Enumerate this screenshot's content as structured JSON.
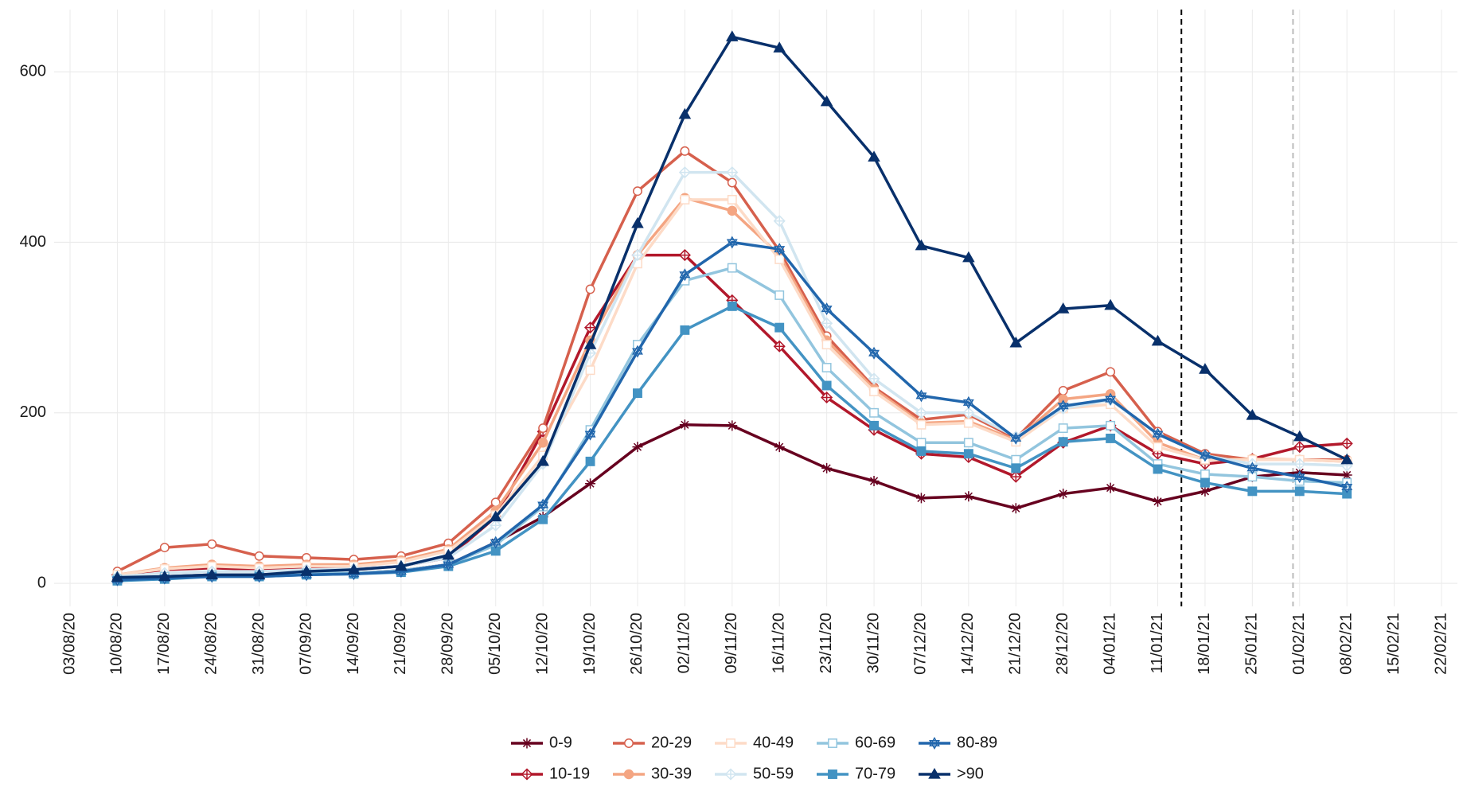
{
  "chart_data": {
    "type": "line",
    "categories": [
      "03/08/20",
      "10/08/20",
      "17/08/20",
      "24/08/20",
      "31/08/20",
      "07/09/20",
      "14/09/20",
      "21/09/20",
      "28/09/20",
      "05/10/20",
      "12/10/20",
      "19/10/20",
      "26/10/20",
      "02/11/20",
      "09/11/20",
      "16/11/20",
      "23/11/20",
      "30/11/20",
      "07/12/20",
      "14/12/20",
      "21/12/20",
      "28/12/20",
      "04/01/21",
      "11/01/21",
      "18/01/21",
      "25/01/21",
      "01/02/21",
      "08/02/21",
      "15/02/21",
      "22/02/21"
    ],
    "ylim": [
      -27,
      673
    ],
    "yticks": [
      0,
      200,
      400,
      600
    ],
    "grid": true,
    "legend": "bottom",
    "vlines": [
      {
        "x": 23.5,
        "color": "#000000"
      },
      {
        "x": 25.86,
        "color": "#bbbbbb"
      }
    ],
    "series": [
      {
        "name": "0-9",
        "color": "#67001f",
        "marker": "asterisk",
        "values": [
          null,
          5,
          8,
          10,
          10,
          12,
          12,
          15,
          22,
          48,
          78,
          117,
          160,
          186,
          185,
          160,
          135,
          120,
          100,
          102,
          88,
          105,
          112,
          96,
          108,
          125,
          130,
          127,
          null,
          null
        ]
      },
      {
        "name": "10-19",
        "color": "#b2182b",
        "marker": "diamond",
        "values": [
          null,
          10,
          16,
          18,
          16,
          17,
          17,
          20,
          30,
          78,
          178,
          300,
          385,
          385,
          332,
          278,
          218,
          180,
          152,
          148,
          125,
          165,
          185,
          152,
          140,
          146,
          160,
          164,
          null,
          null
        ]
      },
      {
        "name": "20-29",
        "color": "#d6604d",
        "marker": "circle-open",
        "values": [
          null,
          14,
          42,
          46,
          32,
          30,
          28,
          32,
          47,
          95,
          182,
          345,
          460,
          507,
          470,
          390,
          290,
          230,
          192,
          198,
          170,
          226,
          248,
          178,
          152,
          145,
          145,
          145,
          null,
          null
        ]
      },
      {
        "name": "30-39",
        "color": "#f4a582",
        "marker": "circle",
        "values": [
          null,
          10,
          18,
          22,
          20,
          22,
          22,
          27,
          40,
          85,
          165,
          285,
          385,
          452,
          437,
          385,
          285,
          228,
          188,
          190,
          168,
          216,
          222,
          165,
          145,
          146,
          145,
          143,
          null,
          null
        ]
      },
      {
        "name": "40-49",
        "color": "#fddbc7",
        "marker": "square-open",
        "values": [
          null,
          10,
          17,
          20,
          18,
          20,
          20,
          25,
          38,
          80,
          150,
          250,
          375,
          450,
          450,
          380,
          280,
          225,
          186,
          188,
          166,
          205,
          210,
          160,
          145,
          145,
          145,
          143,
          null,
          null
        ]
      },
      {
        "name": "50-59",
        "color": "#d1e5f0",
        "marker": "diamond",
        "values": [
          null,
          8,
          12,
          14,
          14,
          16,
          17,
          20,
          30,
          68,
          140,
          270,
          385,
          482,
          482,
          425,
          305,
          240,
          200,
          200,
          172,
          205,
          215,
          175,
          150,
          140,
          140,
          138,
          null,
          null
        ]
      },
      {
        "name": "60-69",
        "color": "#92c5de",
        "marker": "square-open",
        "values": [
          null,
          5,
          8,
          10,
          10,
          12,
          12,
          15,
          22,
          45,
          90,
          180,
          280,
          355,
          370,
          338,
          253,
          200,
          165,
          165,
          145,
          182,
          185,
          140,
          128,
          125,
          120,
          118,
          null,
          null
        ]
      },
      {
        "name": "70-79",
        "color": "#4393c3",
        "marker": "square",
        "values": [
          null,
          3,
          5,
          8,
          8,
          10,
          11,
          13,
          20,
          38,
          75,
          143,
          223,
          297,
          325,
          300,
          232,
          185,
          155,
          152,
          135,
          166,
          170,
          134,
          118,
          108,
          108,
          105,
          null,
          null
        ]
      },
      {
        "name": "80-89",
        "color": "#2166ac",
        "marker": "star",
        "values": [
          null,
          4,
          6,
          8,
          8,
          10,
          11,
          14,
          22,
          48,
          92,
          175,
          272,
          362,
          400,
          392,
          322,
          270,
          220,
          212,
          170,
          208,
          216,
          175,
          150,
          135,
          125,
          113,
          null,
          null
        ]
      },
      {
        "name": ">90",
        "color": "#08306b",
        "marker": "triangle",
        "values": [
          null,
          7,
          8,
          10,
          10,
          14,
          16,
          20,
          33,
          78,
          143,
          280,
          422,
          550,
          641,
          628,
          565,
          500,
          396,
          382,
          282,
          322,
          326,
          284,
          251,
          197,
          172,
          145,
          null,
          null
        ]
      }
    ]
  }
}
